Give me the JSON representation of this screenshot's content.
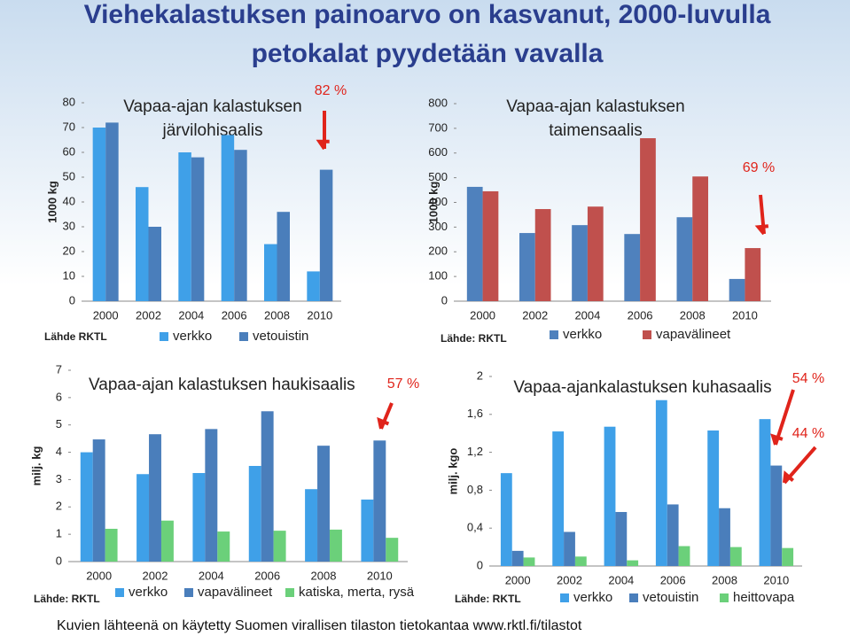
{
  "header": {
    "title": [
      "Viehekalastuksen painoarvo on kasvanut, 2000-luvulla",
      "petokalat pyydetään vavalla"
    ]
  },
  "chart_data": [
    {
      "type": "bar",
      "title": [
        "Vapaa-ajan kalastuksen",
        "järvilohisaalis"
      ],
      "ylabel": "1000 kg",
      "source": "Lähde RKTL",
      "annotations": [
        "82 %"
      ],
      "categories": [
        "2000",
        "2002",
        "2004",
        "2006",
        "2008",
        "2010"
      ],
      "series": [
        {
          "name": "verkko",
          "color": "#3fa0e8",
          "values": [
            70,
            46,
            60,
            67,
            23,
            12
          ]
        },
        {
          "name": "vetouistin",
          "color": "#4a7ebb",
          "values": [
            72,
            30,
            58,
            61,
            36,
            53
          ]
        }
      ],
      "ylim": [
        0,
        80
      ],
      "yticks": [
        0,
        10,
        20,
        30,
        40,
        50,
        60,
        70,
        80
      ]
    },
    {
      "type": "bar",
      "title": [
        "Vapaa-ajan kalastuksen",
        "taimensaalis"
      ],
      "ylabel": "1000 kg",
      "source": "Lähde: RKTL",
      "annotations": [
        "69 %"
      ],
      "categories": [
        "2000",
        "2002",
        "2004",
        "2006",
        "2008",
        "2010"
      ],
      "series": [
        {
          "name": "verkko",
          "color": "#4f81bd",
          "values": [
            463,
            276,
            308,
            272,
            340,
            90
          ]
        },
        {
          "name": "vapavälineet",
          "color": "#c0504d",
          "values": [
            445,
            373,
            383,
            660,
            505,
            215
          ]
        }
      ],
      "ylim": [
        0,
        800
      ],
      "yticks": [
        0,
        100,
        200,
        300,
        400,
        500,
        600,
        700,
        800
      ]
    },
    {
      "type": "bar",
      "title": [
        "Vapaa-ajan kalastuksen haukisaalis"
      ],
      "ylabel": "milj. kg",
      "source": "Lähde: RKTL",
      "annotations": [
        "57 %"
      ],
      "categories": [
        "2000",
        "2002",
        "2004",
        "2006",
        "2008",
        "2010"
      ],
      "series": [
        {
          "name": "verkko",
          "color": "#3fa0e8",
          "values": [
            4.0,
            3.2,
            3.24,
            3.5,
            2.65,
            2.27
          ]
        },
        {
          "name": "vapavälineet",
          "color": "#4a7ebb",
          "values": [
            4.47,
            4.66,
            4.85,
            5.5,
            4.24,
            4.43
          ]
        },
        {
          "name": "katiska, merta, rysä",
          "color": "#6bd07a",
          "values": [
            1.2,
            1.5,
            1.1,
            1.13,
            1.17,
            0.87
          ]
        }
      ],
      "ylim": [
        0,
        7
      ],
      "yticks": [
        0,
        1,
        2,
        3,
        4,
        5,
        6,
        7
      ]
    },
    {
      "type": "bar",
      "title": [
        "Vapaa-ajankalastuksen kuhasaalis"
      ],
      "ylabel": "milj. kgo",
      "source": "Lähde: RKTL",
      "annotations": [
        "54 %",
        "44 %"
      ],
      "categories": [
        "2000",
        "2002",
        "2004",
        "2006",
        "2008",
        "2010"
      ],
      "series": [
        {
          "name": "verkko",
          "color": "#3fa0e8",
          "values": [
            0.98,
            1.42,
            1.47,
            1.75,
            1.43,
            1.55
          ]
        },
        {
          "name": "vetouistin",
          "color": "#4a7ebb",
          "values": [
            0.16,
            0.36,
            0.57,
            0.65,
            0.61,
            1.06
          ]
        },
        {
          "name": "heittovapa",
          "color": "#6bd07a",
          "values": [
            0.09,
            0.1,
            0.06,
            0.21,
            0.2,
            0.19
          ]
        }
      ],
      "ylim": [
        0,
        2
      ],
      "yticks": [
        0,
        {
          "value": 0.4,
          "label": "0,4"
        },
        {
          "value": 0.8,
          "label": "0,8"
        },
        {
          "value": 1.2,
          "label": "1,2"
        },
        {
          "value": 1.6,
          "label": "1,6"
        },
        2
      ]
    }
  ],
  "footer": "Kuvien lähteenä on käytetty Suomen virallisen tilaston tietokantaa www.rktl.fi/tilastot"
}
